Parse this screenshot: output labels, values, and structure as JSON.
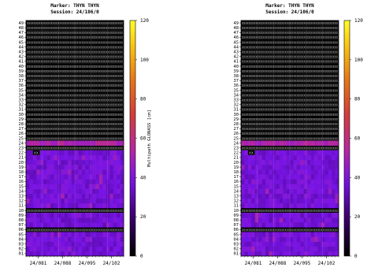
{
  "colorbar_ticks": [
    "0",
    "20",
    "40",
    "60",
    "80",
    "100",
    "120"
  ],
  "colorbar_label": "Multipath GLONASS [cm]",
  "chart_data": [
    {
      "type": "heatmap",
      "title": "Marker: THYN THYN",
      "subtitle": "Session: 24/106/0",
      "xlabel": "",
      "ylabel": "",
      "x_ticks": [
        "24/081",
        "24/088",
        "24/095",
        "24/102"
      ],
      "y_ticks": [
        "01",
        "02",
        "03",
        "04",
        "05",
        "06",
        "07",
        "08",
        "09",
        "10",
        "11",
        "12",
        "13",
        "14",
        "15",
        "16",
        "17",
        "18",
        "19",
        "20",
        "21",
        "22",
        "23",
        "24",
        "25",
        "26",
        "27",
        "28",
        "29",
        "30",
        "31",
        "32",
        "33",
        "34",
        "35",
        "36",
        "37",
        "38",
        "39",
        "40",
        "41",
        "42",
        "43",
        "44",
        "45",
        "46",
        "47",
        "48",
        "49"
      ],
      "colorbar": {
        "range": [
          0,
          120
        ],
        "label": "Multipath GLONASS [cm]",
        "colormap": "black-purple-red-orange-yellow"
      },
      "no_data_rows": [
        "06",
        "10",
        "23",
        "25",
        "26",
        "27",
        "28",
        "29",
        "30",
        "31",
        "32",
        "33",
        "34",
        "35",
        "36",
        "37",
        "38",
        "39",
        "40",
        "41",
        "42",
        "43",
        "44",
        "45",
        "46",
        "47",
        "48",
        "49"
      ],
      "no_data_cells": [
        {
          "row": "22",
          "x": "24/083"
        }
      ],
      "typical_value": 37,
      "row24_value": 52
    },
    {
      "type": "heatmap",
      "title": "Marker: THYN THYN",
      "subtitle": "Session: 24/106/0",
      "xlabel": "",
      "ylabel": "",
      "x_ticks": [
        "24/081",
        "24/088",
        "24/095",
        "24/102"
      ],
      "y_ticks": [
        "01",
        "02",
        "03",
        "04",
        "05",
        "06",
        "07",
        "08",
        "09",
        "10",
        "11",
        "12",
        "13",
        "14",
        "15",
        "16",
        "17",
        "18",
        "19",
        "20",
        "21",
        "22",
        "23",
        "24",
        "25",
        "26",
        "27",
        "28",
        "29",
        "30",
        "31",
        "32",
        "33",
        "34",
        "35",
        "36",
        "37",
        "38",
        "39",
        "40",
        "41",
        "42",
        "43",
        "44",
        "45",
        "46",
        "47",
        "48",
        "49"
      ],
      "colorbar": {
        "range": [
          0,
          120
        ],
        "label": "",
        "colormap": "black-purple-red-orange-yellow"
      },
      "no_data_rows": [
        "06",
        "10",
        "23",
        "25",
        "26",
        "27",
        "28",
        "29",
        "30",
        "31",
        "32",
        "33",
        "34",
        "35",
        "36",
        "37",
        "38",
        "39",
        "40",
        "41",
        "42",
        "43",
        "44",
        "45",
        "46",
        "47",
        "48",
        "49"
      ],
      "no_data_cells": [
        {
          "row": "22",
          "x": "24/083"
        }
      ],
      "typical_value": 37,
      "row24_value": 52
    }
  ]
}
